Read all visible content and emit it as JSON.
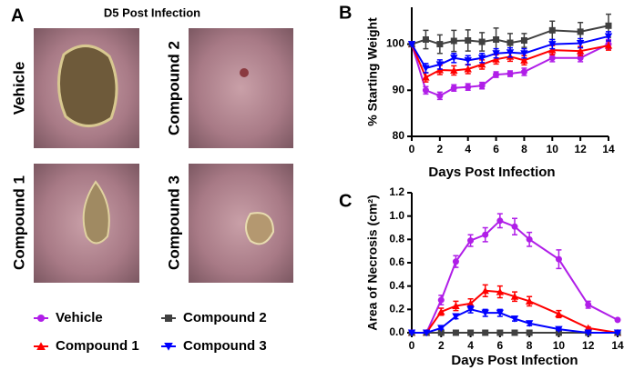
{
  "panel_a": {
    "label": "A",
    "title": "D5 Post Infection",
    "images": [
      {
        "label": "Vehicle"
      },
      {
        "label": "Compound 2"
      },
      {
        "label": "Compound 1"
      },
      {
        "label": "Compound 3"
      }
    ]
  },
  "chart_data": [
    {
      "type": "line",
      "label": "B",
      "xlabel": "Days Post Infection",
      "ylabel": "% Starting Weight",
      "x": [
        0,
        1,
        2,
        3,
        4,
        5,
        6,
        7,
        8,
        10,
        12,
        14
      ],
      "xlim": [
        0,
        14
      ],
      "xticks": [
        0,
        2,
        4,
        6,
        8,
        10,
        12,
        14
      ],
      "ylim": [
        80,
        108
      ],
      "yticks": [
        80,
        90,
        100
      ],
      "series": [
        {
          "name": "Vehicle",
          "color": "#b01ee8",
          "marker": "circle",
          "values": [
            100,
            90,
            88.8,
            90.5,
            90.7,
            91,
            93.4,
            93.6,
            94,
            97,
            97,
            100
          ],
          "errors": [
            0,
            0.8,
            0.8,
            0.7,
            0.7,
            0.7,
            0.6,
            0.6,
            0.8,
            0.8,
            0.8,
            1
          ]
        },
        {
          "name": "Compound 1",
          "color": "#ff0000",
          "marker": "triangle-up",
          "values": [
            100,
            92.8,
            94.4,
            94.3,
            94.6,
            95.6,
            96.7,
            97.3,
            96.5,
            98.7,
            98.5,
            99.7
          ],
          "errors": [
            0,
            1,
            1,
            1,
            1,
            1,
            1,
            1,
            1,
            1,
            1,
            1
          ]
        },
        {
          "name": "Compound 2",
          "color": "#404040",
          "marker": "square",
          "values": [
            100,
            101,
            100,
            100.7,
            100.8,
            100.5,
            101,
            100.3,
            100.8,
            103,
            102.7,
            104
          ],
          "errors": [
            0,
            2,
            2,
            2.3,
            2.3,
            2,
            2.5,
            2,
            1.5,
            2,
            2,
            2.5
          ]
        },
        {
          "name": "Compound 3",
          "color": "#0000ff",
          "marker": "triangle-down",
          "values": [
            100,
            94.8,
            95.6,
            97,
            96.5,
            97,
            98,
            98.2,
            98,
            100,
            100.2,
            101.7
          ],
          "errors": [
            0,
            1,
            1,
            1,
            1,
            1,
            1,
            1,
            1,
            1,
            1,
            1
          ]
        }
      ]
    },
    {
      "type": "line",
      "label": "C",
      "xlabel": "Days Post Infection",
      "ylabel": "Area of Necrosis (cm²)",
      "x": [
        0,
        1,
        2,
        3,
        4,
        5,
        6,
        7,
        8,
        10,
        12,
        14
      ],
      "xlim": [
        0,
        14
      ],
      "xticks": [
        0,
        2,
        4,
        6,
        8,
        10,
        12,
        14
      ],
      "ylim": [
        0,
        1.2
      ],
      "yticks": [
        {
          "value": 0,
          "label": "0.0"
        },
        0.2,
        0.4,
        0.6,
        0.8,
        {
          "value": 1,
          "label": "1.0"
        },
        1.2
      ],
      "series": [
        {
          "name": "Vehicle",
          "color": "#b01ee8",
          "marker": "circle",
          "values": [
            0,
            0,
            0.28,
            0.61,
            0.79,
            0.84,
            0.96,
            0.91,
            0.8,
            0.63,
            0.24,
            0.11
          ],
          "errors": [
            0,
            0,
            0.04,
            0.05,
            0.05,
            0.06,
            0.06,
            0.07,
            0.06,
            0.08,
            0.03,
            0.01
          ]
        },
        {
          "name": "Compound 1",
          "color": "#ff0000",
          "marker": "triangle-up",
          "values": [
            0,
            0,
            0.18,
            0.23,
            0.25,
            0.36,
            0.35,
            0.31,
            0.27,
            0.16,
            0.04,
            0
          ],
          "errors": [
            0,
            0,
            0.03,
            0.04,
            0.04,
            0.05,
            0.05,
            0.04,
            0.04,
            0.03,
            0.01,
            0
          ]
        },
        {
          "name": "Compound 2",
          "color": "#404040",
          "marker": "square",
          "values": [
            0,
            0,
            0,
            0,
            0,
            0,
            0,
            0,
            0,
            0,
            0,
            0
          ],
          "errors": [
            0,
            0,
            0,
            0,
            0,
            0,
            0,
            0,
            0,
            0,
            0,
            0
          ]
        },
        {
          "name": "Compound 3",
          "color": "#0000ff",
          "marker": "triangle-down",
          "values": [
            0,
            0,
            0.04,
            0.14,
            0.2,
            0.17,
            0.17,
            0.12,
            0.08,
            0.03,
            0,
            0
          ],
          "errors": [
            0,
            0,
            0.01,
            0.02,
            0.03,
            0.03,
            0.03,
            0.02,
            0.02,
            0.01,
            0,
            0
          ]
        }
      ]
    }
  ]
}
